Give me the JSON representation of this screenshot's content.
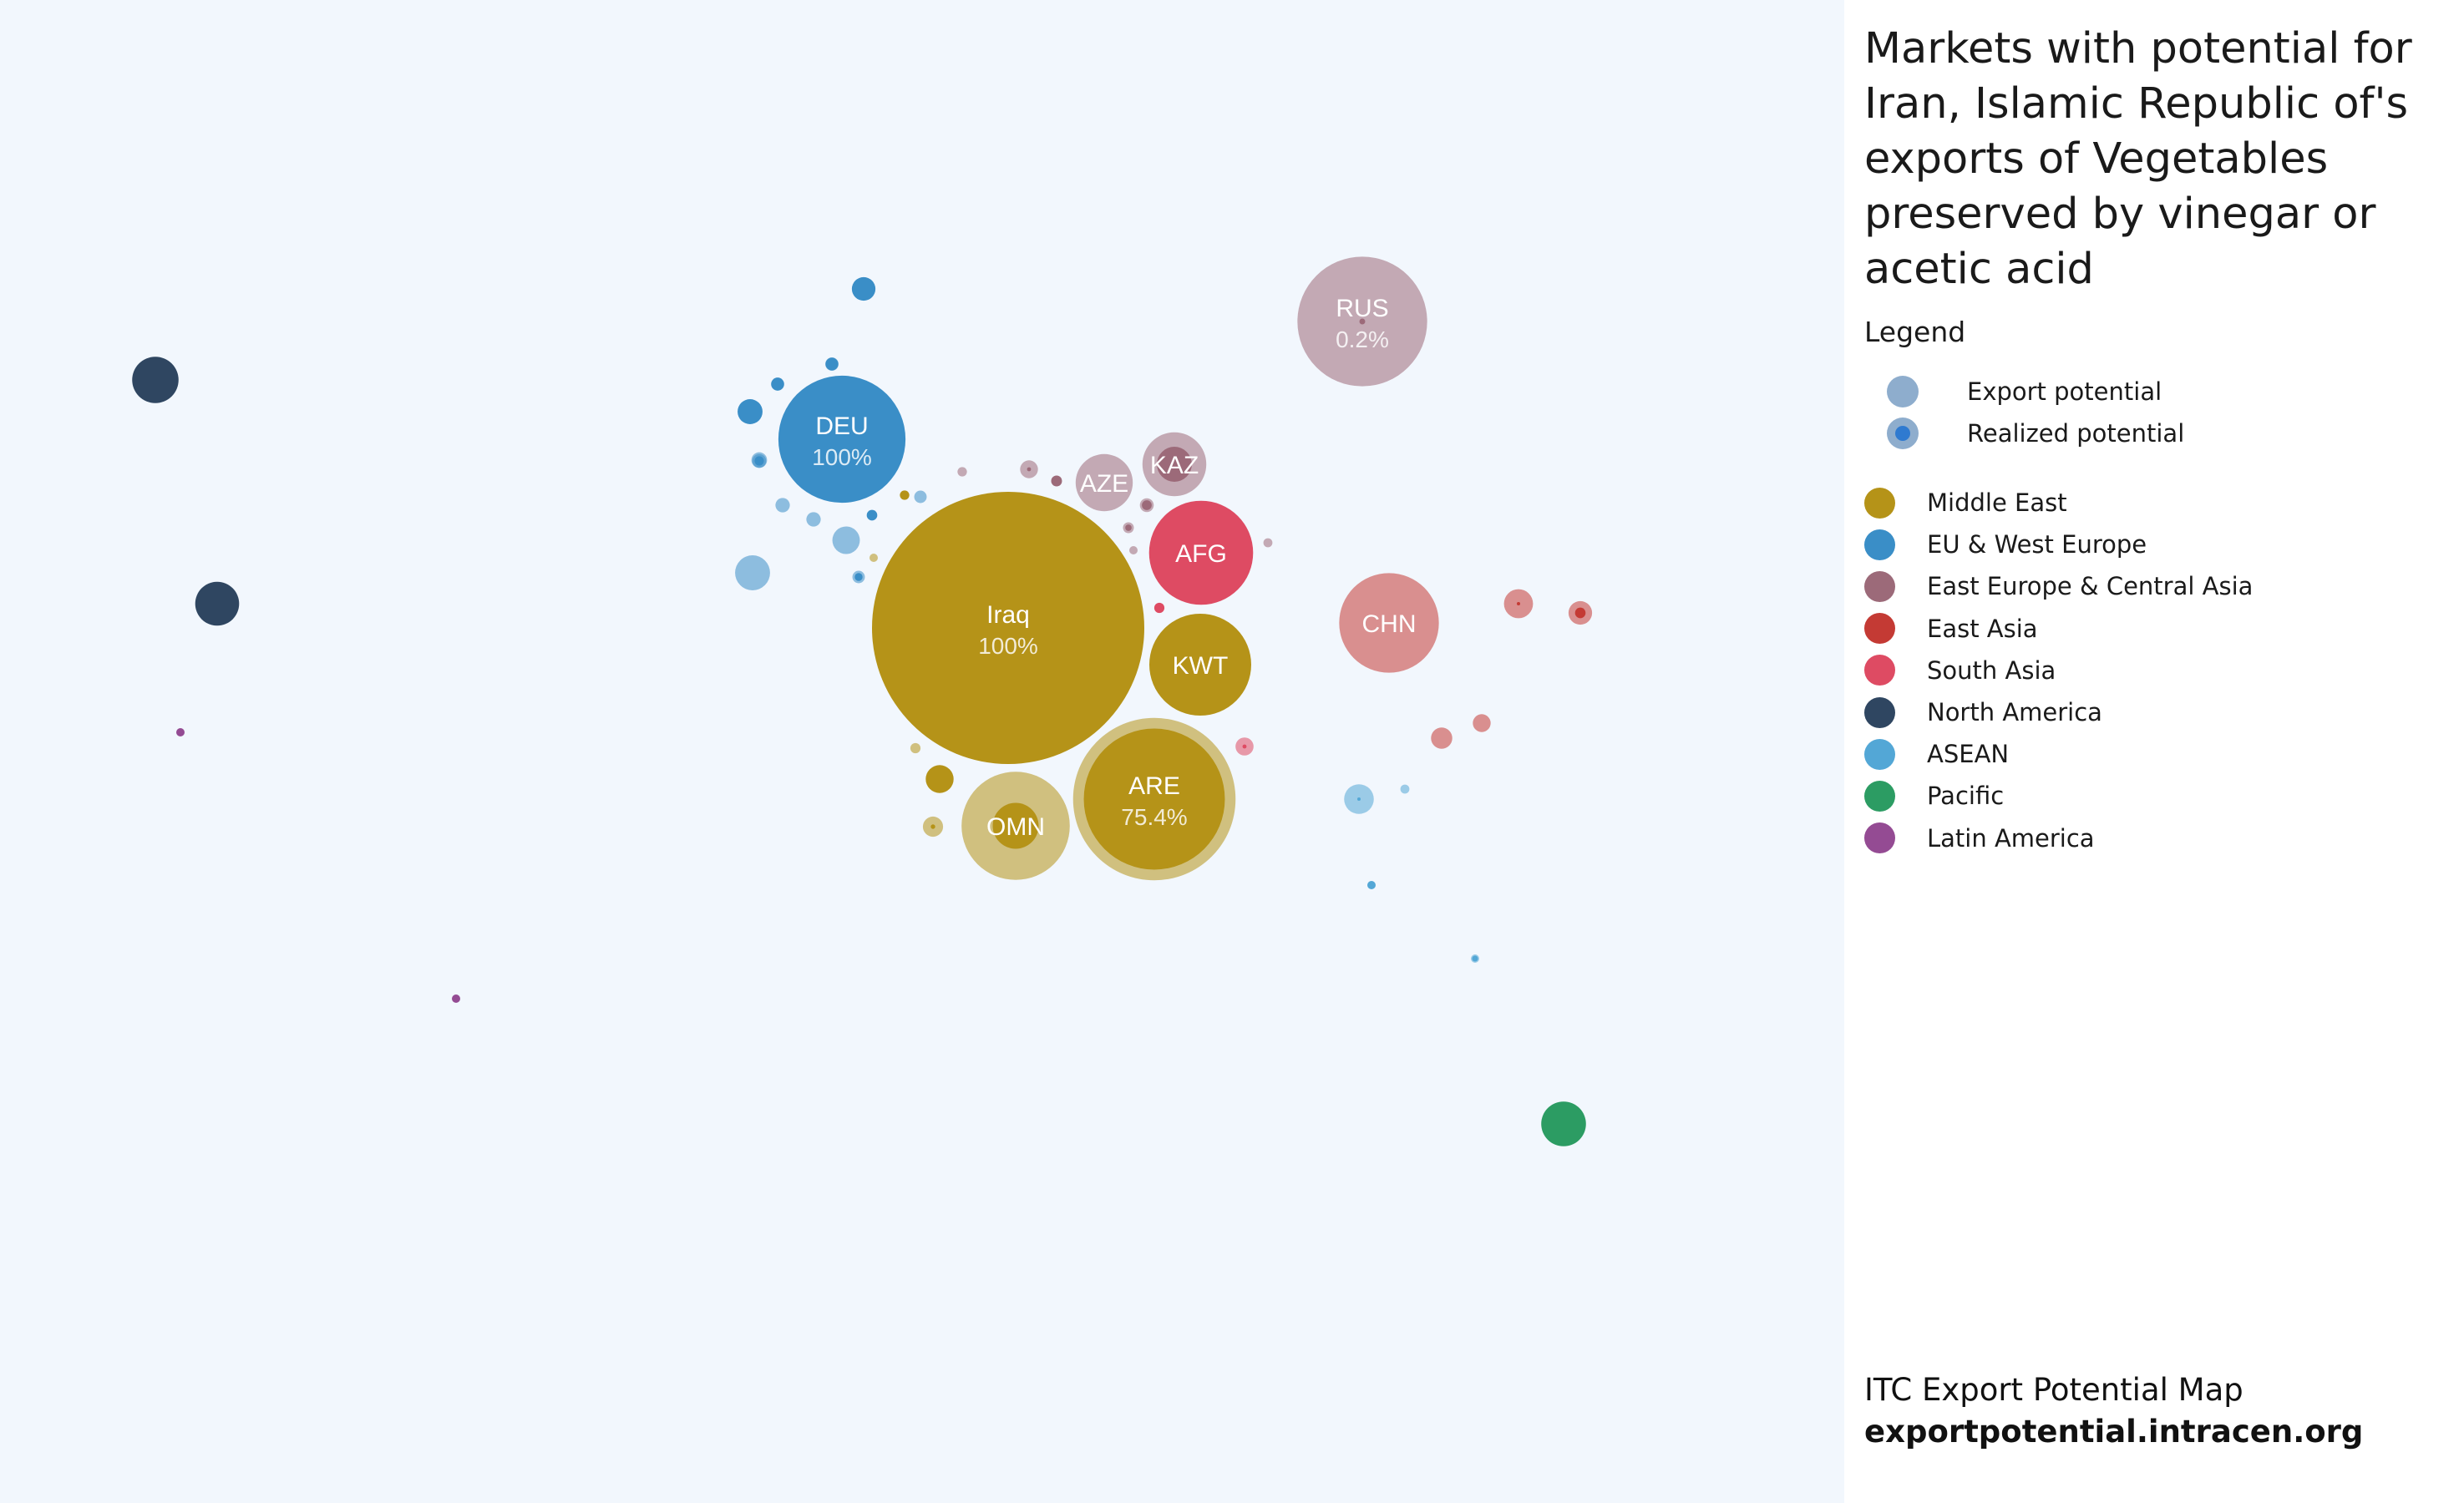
{
  "title": "Markets with potential for Iran, Islamic Republic of's exports of Vegetables preserved by vinegar or acetic acid",
  "legend": {
    "heading": "Legend",
    "potential_items": [
      {
        "label": "Export potential"
      },
      {
        "label": "Realized potential"
      }
    ],
    "regions": [
      {
        "key": "me",
        "label": "Middle East",
        "color": "#b59318"
      },
      {
        "key": "eu",
        "label": "EU & West Europe",
        "color": "#3a8ec7"
      },
      {
        "key": "ee",
        "label": "East Europe & Central Asia",
        "color": "#9c6a79"
      },
      {
        "key": "ea",
        "label": "East Asia",
        "color": "#c43a34"
      },
      {
        "key": "sa",
        "label": "South Asia",
        "color": "#de4b63"
      },
      {
        "key": "na",
        "label": "North America",
        "color": "#2f4661"
      },
      {
        "key": "as",
        "label": "ASEAN",
        "color": "#53a7d6"
      },
      {
        "key": "pa",
        "label": "Pacific",
        "color": "#2c9c63"
      },
      {
        "key": "la",
        "label": "Latin America",
        "color": "#944b93"
      }
    ]
  },
  "footer": {
    "line1": "ITC Export Potential Map",
    "line2": "exportpotential.intracen.org"
  },
  "chart_data": {
    "type": "scatter",
    "encoding": "bubble size = export potential; inner circle = realized potential; color = region",
    "markets": [
      {
        "label": "Iraq",
        "pct": "100%",
        "region": "me",
        "potential": 1.0,
        "realized": 1.0
      },
      {
        "label": "ARE",
        "pct": "75.4%",
        "region": "me",
        "potential": 0.356,
        "realized": 0.754
      },
      {
        "label": "OMN",
        "pct": "",
        "region": "me",
        "potential": 0.158,
        "realized": 0.18
      },
      {
        "label": "KWT",
        "pct": "",
        "region": "me",
        "potential": 0.14,
        "realized": 1.0
      },
      {
        "label": "DEU",
        "pct": "100%",
        "region": "eu",
        "potential": 0.218,
        "realized": 1.0
      },
      {
        "label": "RUS",
        "pct": "0.2%",
        "region": "ee",
        "potential": 0.227,
        "realized": 0.002
      },
      {
        "label": "KAZ",
        "pct": "",
        "region": "ee",
        "potential": 0.055,
        "realized": 0.3
      },
      {
        "label": "AZE",
        "pct": "",
        "region": "ee",
        "potential": 0.044,
        "realized": 0.0
      },
      {
        "label": "AFG",
        "pct": "",
        "region": "sa",
        "potential": 0.146,
        "realized": 1.0
      },
      {
        "label": "CHN",
        "pct": "",
        "region": "ea",
        "potential": 0.134,
        "realized": 0.0
      },
      {
        "label": "",
        "pct": "",
        "region": "na",
        "potential": 0.029,
        "realized": 1.0
      },
      {
        "label": "",
        "pct": "",
        "region": "na",
        "potential": 0.026,
        "realized": 1.0
      },
      {
        "label": "",
        "pct": "",
        "region": "la",
        "potential": 0.0005,
        "realized": 1.0
      },
      {
        "label": "",
        "pct": "",
        "region": "la",
        "potential": 0.0005,
        "realized": 1.0
      },
      {
        "label": "",
        "pct": "",
        "region": "pa",
        "potential": 0.027,
        "realized": 1.0
      },
      {
        "label": "",
        "pct": "",
        "region": "eu",
        "potential": 0.0075,
        "realized": 1.0
      },
      {
        "label": "",
        "pct": "",
        "region": "eu",
        "potential": 0.0024,
        "realized": 0.9
      },
      {
        "label": "",
        "pct": "",
        "region": "eu",
        "potential": 0.0084,
        "realized": 1.0
      },
      {
        "label": "",
        "pct": "",
        "region": "eu",
        "potential": 0.0023,
        "realized": 1.0
      },
      {
        "label": "",
        "pct": "",
        "region": "eu",
        "potential": 0.0033,
        "realized": 0.2
      },
      {
        "label": "",
        "pct": "",
        "region": "eu",
        "potential": 0.0028,
        "realized": 0.0
      },
      {
        "label": "",
        "pct": "",
        "region": "eu",
        "potential": 0.0028,
        "realized": 0.0
      },
      {
        "label": "",
        "pct": "",
        "region": "eu",
        "potential": 0.0026,
        "realized": 0.45
      },
      {
        "label": "",
        "pct": "",
        "region": "eu",
        "potential": 0.0102,
        "realized": 0.0
      },
      {
        "label": "",
        "pct": "",
        "region": "eu",
        "potential": 0.0015,
        "realized": 1.0
      },
      {
        "label": "",
        "pct": "",
        "region": "eu",
        "potential": 0.0021,
        "realized": 0.4
      },
      {
        "label": "",
        "pct": "",
        "region": "eu",
        "potential": 0.0021,
        "realized": 0.0
      },
      {
        "label": "",
        "pct": "",
        "region": "eu",
        "potential": 0.0165,
        "realized": 0.0
      },
      {
        "label": "",
        "pct": "",
        "region": "me",
        "potential": 0.0012,
        "realized": 1.0
      },
      {
        "label": "",
        "pct": "",
        "region": "me",
        "potential": 0.0004,
        "realized": 0.0
      },
      {
        "label": "",
        "pct": "",
        "region": "me",
        "potential": 0.0014,
        "realized": 0.0
      },
      {
        "label": "",
        "pct": "",
        "region": "me",
        "potential": 0.0105,
        "realized": 1.0
      },
      {
        "label": "",
        "pct": "",
        "region": "me",
        "potential": 0.0055,
        "realized": 0.05
      },
      {
        "label": "",
        "pct": "",
        "region": "ee",
        "potential": 0.0043,
        "realized": 0.05
      },
      {
        "label": "",
        "pct": "",
        "region": "ee",
        "potential": 0.0016,
        "realized": 1.0
      },
      {
        "label": "",
        "pct": "",
        "region": "ee",
        "potential": 0.0012,
        "realized": 0.0
      },
      {
        "label": "",
        "pct": "",
        "region": "ee",
        "potential": 0.0011,
        "realized": 0.0
      },
      {
        "label": "",
        "pct": "",
        "region": "ee",
        "potential": 0.0026,
        "realized": 0.5
      },
      {
        "label": "",
        "pct": "",
        "region": "ee",
        "potential": 0.0016,
        "realized": 0.35
      },
      {
        "label": "",
        "pct": "",
        "region": "ee",
        "potential": 0.0002,
        "realized": 0.0
      },
      {
        "label": "",
        "pct": "",
        "region": "sa",
        "potential": 0.0014,
        "realized": 1.0
      },
      {
        "label": "",
        "pct": "",
        "region": "sa",
        "potential": 0.0044,
        "realized": 0.05
      },
      {
        "label": "",
        "pct": "",
        "region": "ea",
        "potential": 0.0114,
        "realized": 0.01
      },
      {
        "label": "",
        "pct": "",
        "region": "ea",
        "potential": 0.0075,
        "realized": 0.2
      },
      {
        "label": "",
        "pct": "",
        "region": "ea",
        "potential": 0.0061,
        "realized": 0.0
      },
      {
        "label": "",
        "pct": "",
        "region": "ea",
        "potential": 0.0043,
        "realized": 0.0
      },
      {
        "label": "",
        "pct": "",
        "region": "as",
        "potential": 0.0119,
        "realized": 0.01
      },
      {
        "label": "",
        "pct": "",
        "region": "as",
        "potential": 0.0011,
        "realized": 0.0
      },
      {
        "label": "",
        "pct": "",
        "region": "as",
        "potential": 0.0007,
        "realized": 1.0
      },
      {
        "label": "",
        "pct": "",
        "region": "as",
        "potential": 0.0009,
        "realized": 0.5
      }
    ]
  }
}
